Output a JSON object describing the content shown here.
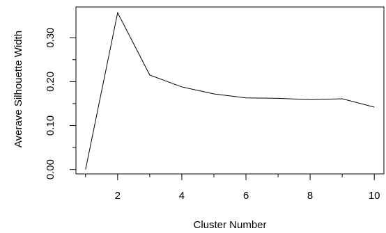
{
  "chart_data": {
    "type": "line",
    "title": "",
    "xlabel": "Cluster Number",
    "ylabel": "Averave Silhouette Width",
    "x": [
      1,
      2,
      3,
      4,
      5,
      6,
      7,
      8,
      9,
      10
    ],
    "y": [
      0.0,
      0.357,
      0.215,
      0.188,
      0.172,
      0.163,
      0.162,
      0.159,
      0.161,
      0.142
    ],
    "xlim": [
      0.7,
      10.3
    ],
    "ylim": [
      -0.01,
      0.37
    ],
    "x_ticks": [
      2,
      4,
      6,
      8,
      10
    ],
    "x_ticks_minor": [
      1,
      3,
      5,
      7,
      9
    ],
    "x_tick_labels": [
      "2",
      "4",
      "6",
      "8",
      "10"
    ],
    "y_ticks": [
      0.0,
      0.1,
      0.2,
      0.3
    ],
    "y_ticks_minor": [
      0.05,
      0.15,
      0.25
    ],
    "y_tick_labels": [
      "0.00",
      "0.10",
      "0.20",
      "0.30"
    ],
    "grid": false,
    "line_color": "#000000"
  }
}
